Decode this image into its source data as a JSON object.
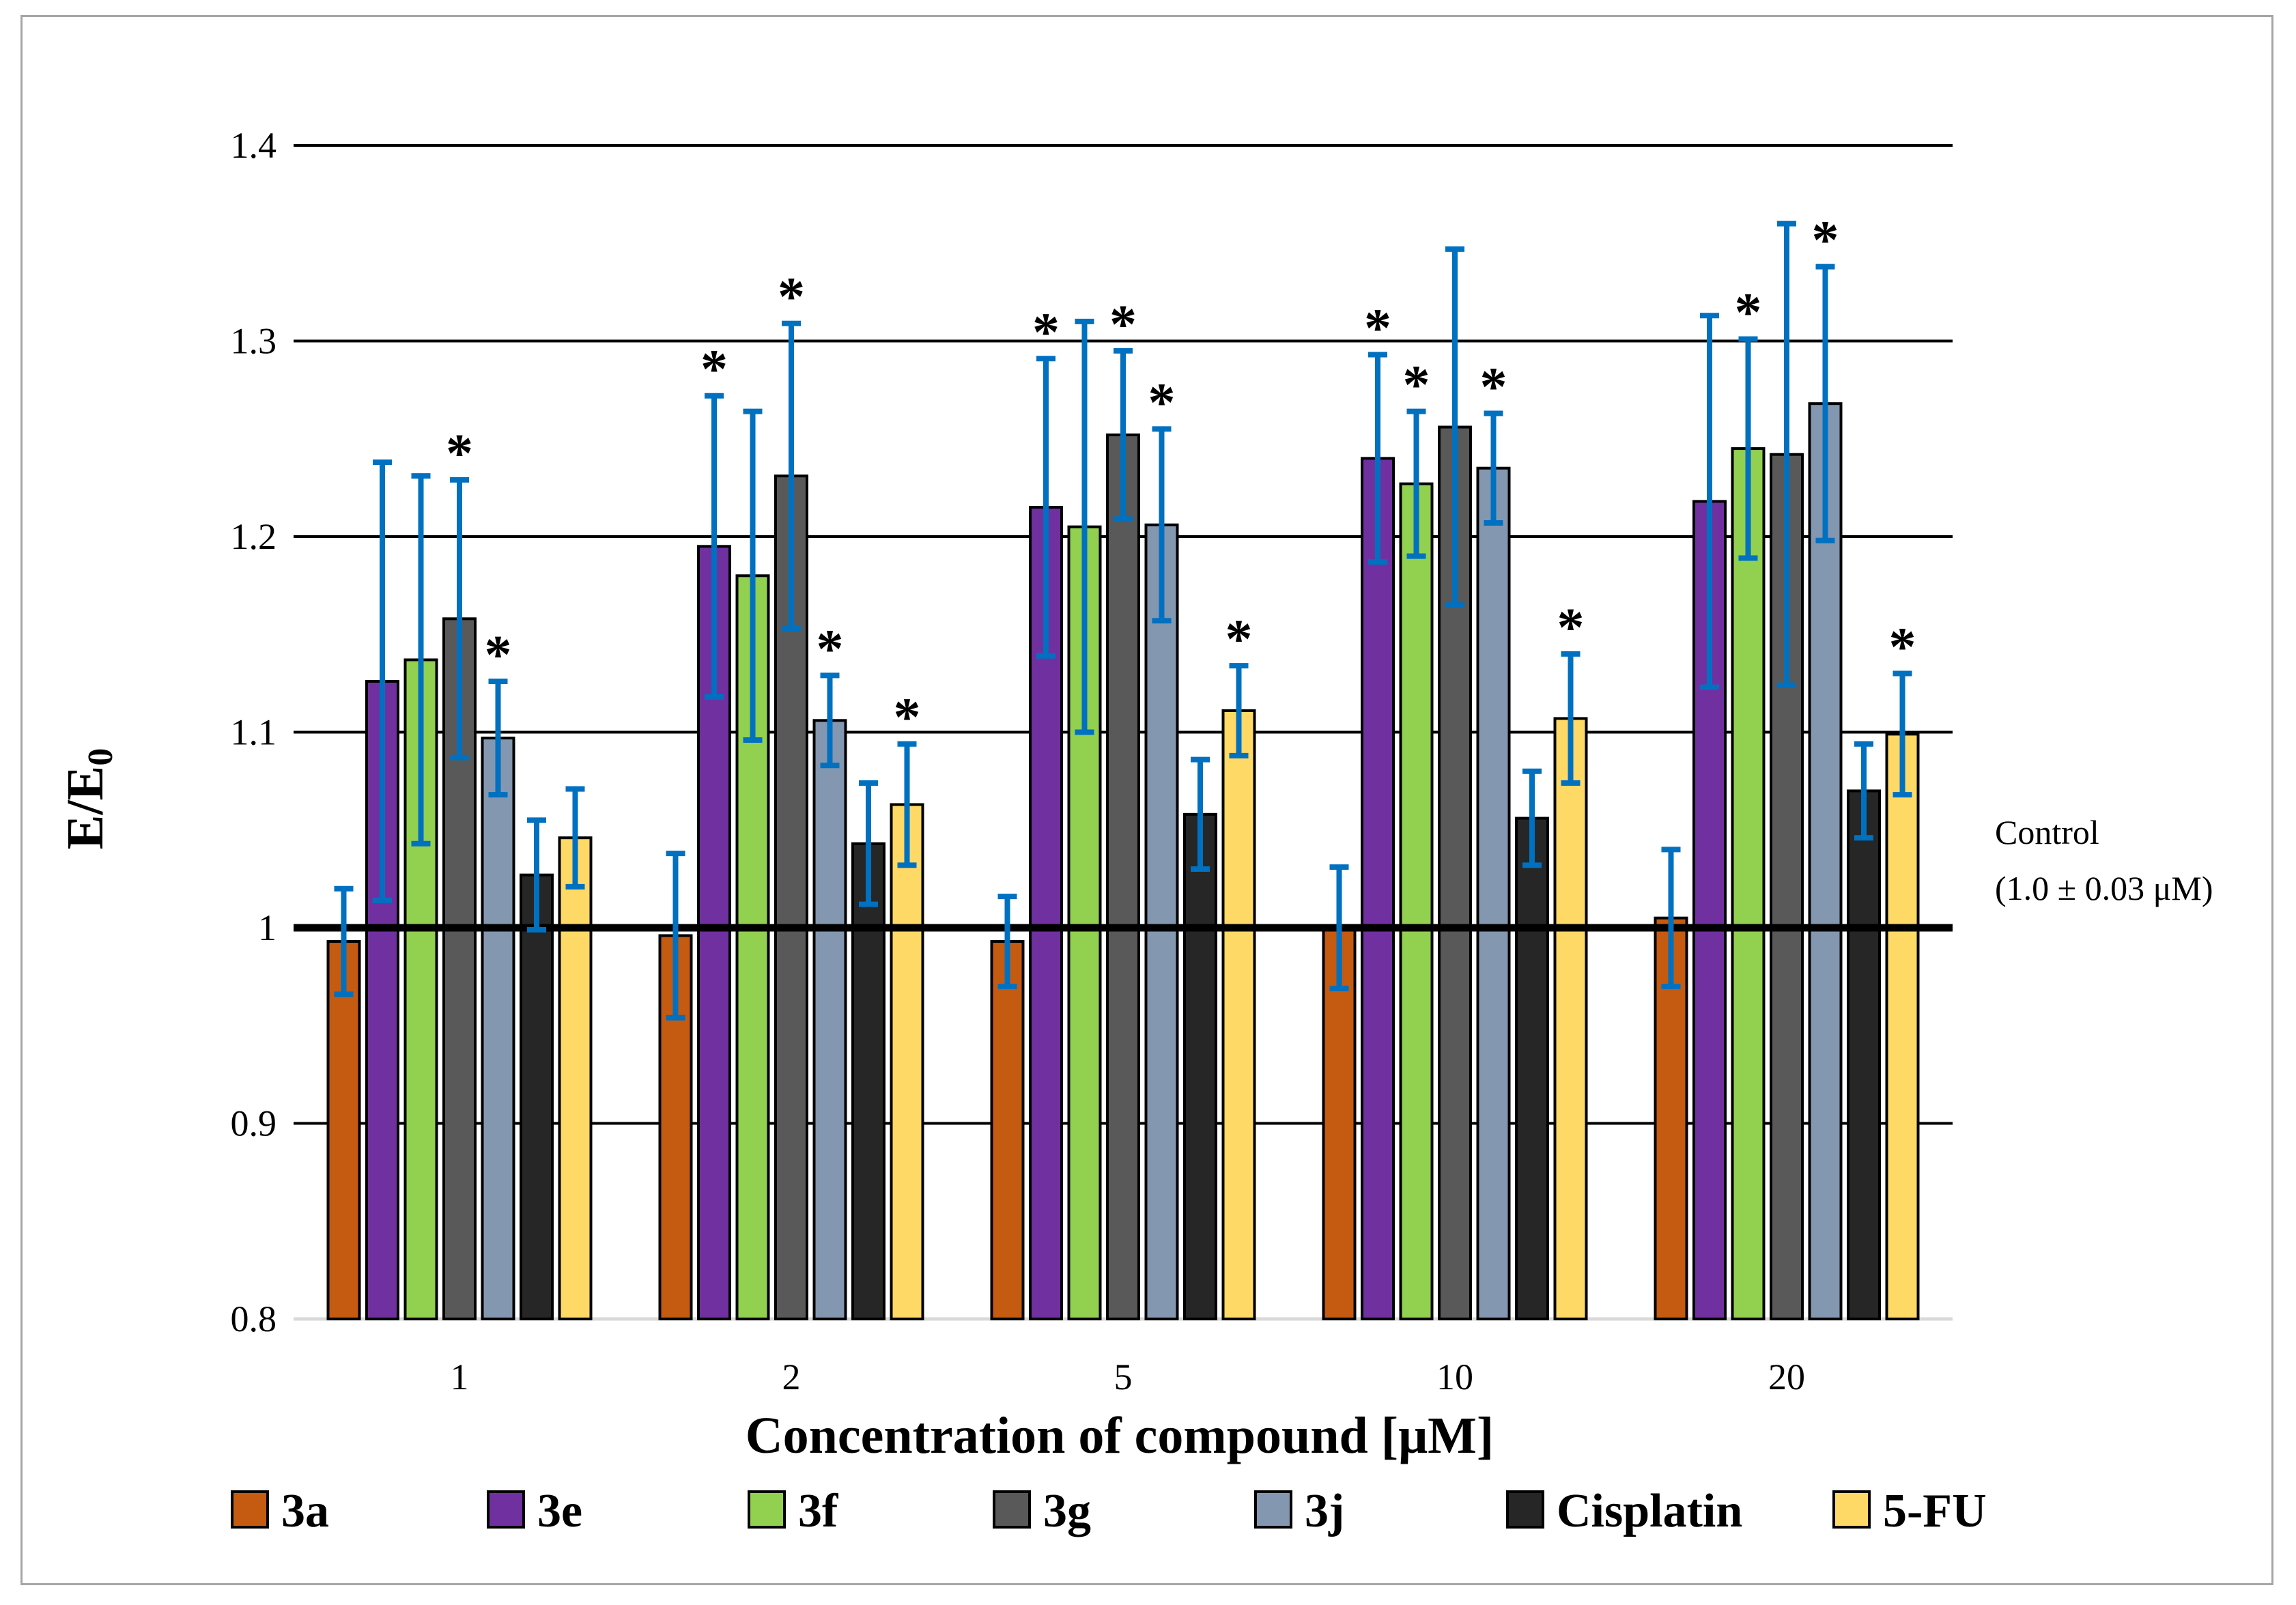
{
  "chart_data": {
    "type": "bar",
    "title": "",
    "xlabel": "Concentration of compound [μM]",
    "ylabel": "E/E0",
    "ylabel_main": "E/E",
    "ylabel_sub": "0",
    "ylim": [
      0.8,
      1.4
    ],
    "yticks": [
      "0.8",
      "0.9",
      "1",
      "1.1",
      "1.2",
      "1.3",
      "1.4"
    ],
    "grid": true,
    "legend_position": "bottom",
    "categories": [
      "1",
      "2",
      "5",
      "10",
      "20"
    ],
    "series": [
      {
        "name": "3a",
        "color": "#c55a11",
        "values": [
          0.993,
          0.996,
          0.993,
          1.0,
          1.005
        ],
        "errors": [
          0.027,
          0.042,
          0.023,
          0.031,
          0.035
        ],
        "significant": [
          false,
          false,
          false,
          false,
          false
        ]
      },
      {
        "name": "3e",
        "color": "#7030a0",
        "values": [
          1.126,
          1.195,
          1.215,
          1.24,
          1.218
        ],
        "errors": [
          0.112,
          0.077,
          0.076,
          0.053,
          0.095
        ],
        "significant": [
          false,
          true,
          true,
          true,
          false
        ]
      },
      {
        "name": "3f",
        "color": "#92d050",
        "values": [
          1.137,
          1.18,
          1.205,
          1.227,
          1.245
        ],
        "errors": [
          0.094,
          0.084,
          0.105,
          0.037,
          0.056
        ],
        "significant": [
          false,
          false,
          false,
          true,
          true
        ]
      },
      {
        "name": "3g",
        "color": "#595959",
        "values": [
          1.158,
          1.231,
          1.252,
          1.256,
          1.242
        ],
        "errors": [
          0.071,
          0.078,
          0.043,
          0.091,
          0.118
        ],
        "significant": [
          true,
          true,
          true,
          false,
          false
        ]
      },
      {
        "name": "3j",
        "color": "#8497b0",
        "values": [
          1.097,
          1.106,
          1.206,
          1.235,
          1.268
        ],
        "errors": [
          0.029,
          0.023,
          0.049,
          0.028,
          0.07
        ],
        "significant": [
          true,
          true,
          true,
          true,
          true
        ]
      },
      {
        "name": "Cisplatin",
        "color": "#262626",
        "values": [
          1.027,
          1.043,
          1.058,
          1.056,
          1.07
        ],
        "errors": [
          0.028,
          0.031,
          0.028,
          0.024,
          0.024
        ],
        "significant": [
          false,
          false,
          false,
          false,
          false
        ]
      },
      {
        "name": "5-FU",
        "color": "#ffd966",
        "values": [
          1.046,
          1.063,
          1.111,
          1.107,
          1.099
        ],
        "errors": [
          0.025,
          0.031,
          0.023,
          0.033,
          0.031
        ],
        "significant": [
          false,
          true,
          true,
          true,
          true
        ]
      }
    ],
    "reference_line": {
      "value": 1.0,
      "label_line1": "Control",
      "label_line2": "(1.0 ± 0.03 μM)"
    },
    "annotation_symbol": "*",
    "error_bar_color": "#0070c0"
  }
}
